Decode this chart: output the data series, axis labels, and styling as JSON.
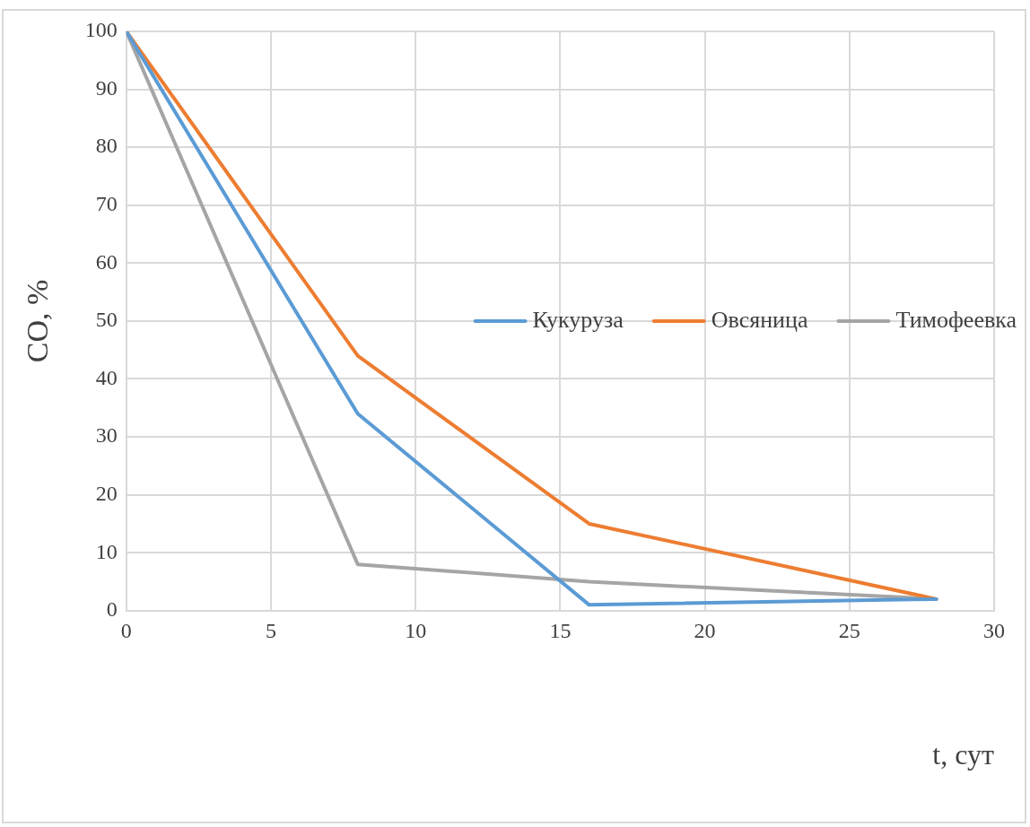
{
  "chart_data": {
    "type": "line",
    "xlabel": "t, сут",
    "ylabel": "CO, %",
    "x": [
      0,
      8,
      16,
      28
    ],
    "series": [
      {
        "name": "Кукуруза",
        "color": "#5b9bd5",
        "values": [
          100,
          34,
          1,
          2
        ]
      },
      {
        "name": "Овсяница",
        "color": "#ed7d31",
        "values": [
          100,
          44,
          15,
          2
        ]
      },
      {
        "name": "Тимофеевка",
        "color": "#a5a5a5",
        "values": [
          100,
          8,
          5,
          2
        ]
      }
    ],
    "xlim": [
      0,
      30
    ],
    "xticks": [
      0,
      5,
      10,
      15,
      20,
      25,
      30
    ],
    "ylim": [
      0,
      100
    ],
    "yticks": [
      0,
      10,
      20,
      30,
      40,
      50,
      60,
      70,
      80,
      90,
      100
    ],
    "grid": true,
    "legend": "right",
    "marker": "none",
    "line_style": "solid"
  }
}
